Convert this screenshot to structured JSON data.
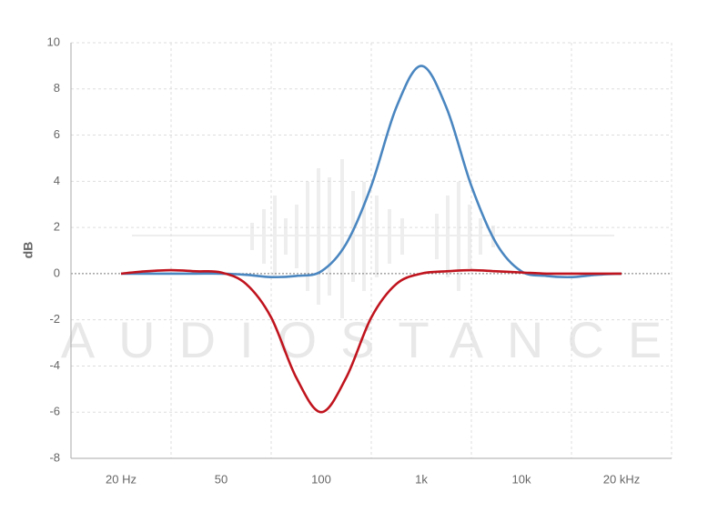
{
  "chart_data": {
    "type": "line",
    "y_label": "dB",
    "watermark": "AUDIOSTANCE",
    "x": [
      0,
      0.25,
      0.5,
      0.75,
      1,
      1.25,
      1.5,
      1.75,
      2,
      2.25,
      2.5,
      2.75,
      3,
      3.25,
      3.5,
      3.75,
      4,
      4.25,
      4.5,
      4.75,
      5
    ],
    "xlim": [
      -0.5,
      5.5
    ],
    "xticks": [
      {
        "value": 0,
        "label": "20 Hz"
      },
      {
        "value": 1,
        "label": "50"
      },
      {
        "value": 2,
        "label": "100"
      },
      {
        "value": 3,
        "label": "1k"
      },
      {
        "value": 4,
        "label": "10k"
      },
      {
        "value": 5,
        "label": "20 kHz"
      }
    ],
    "ylim": [
      -8,
      10
    ],
    "yticks": [
      -8,
      -6,
      -4,
      -2,
      0,
      2,
      4,
      6,
      8,
      10
    ],
    "grid": true,
    "series": [
      {
        "color": "#4a86c0",
        "values": [
          0,
          0,
          0,
          0,
          0,
          -0.05,
          -0.15,
          -0.1,
          0.1,
          1.3,
          3.8,
          7.2,
          9,
          7.2,
          3.8,
          1.3,
          0.1,
          -0.1,
          -0.15,
          -0.05,
          0
        ]
      },
      {
        "color": "#c0141e",
        "values": [
          0,
          0.1,
          0.15,
          0.1,
          0.05,
          -0.45,
          -1.9,
          -4.5,
          -6,
          -4.5,
          -1.9,
          -0.45,
          0,
          0.1,
          0.15,
          0.1,
          0.05,
          0,
          0,
          0,
          0
        ]
      }
    ]
  }
}
